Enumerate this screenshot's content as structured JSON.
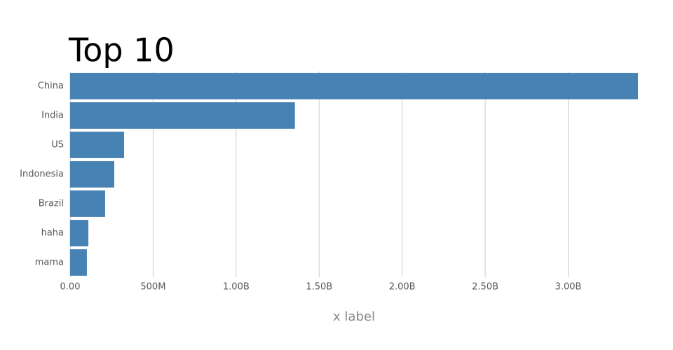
{
  "chart_data": {
    "type": "barh",
    "title": "Top 10",
    "x_label": "x label",
    "categories": [
      "China",
      "India",
      "US",
      "Indonesia",
      "Brazil",
      "haha",
      "mama"
    ],
    "values": [
      3420000000,
      1354000000,
      325000000,
      266000000,
      211000000,
      110000000,
      101000000
    ],
    "color": "#4682b4",
    "xlim": [
      0,
      3420000000
    ],
    "xticks": [
      {
        "value": 0,
        "label": "0.00"
      },
      {
        "value": 500000000,
        "label": "500M"
      },
      {
        "value": 1000000000,
        "label": "1.00B"
      },
      {
        "value": 1500000000,
        "label": "1.50B"
      },
      {
        "value": 2000000000,
        "label": "2.00B"
      },
      {
        "value": 2500000000,
        "label": "2.50B"
      },
      {
        "value": 3000000000,
        "label": "3.00B"
      }
    ],
    "grid": true
  }
}
